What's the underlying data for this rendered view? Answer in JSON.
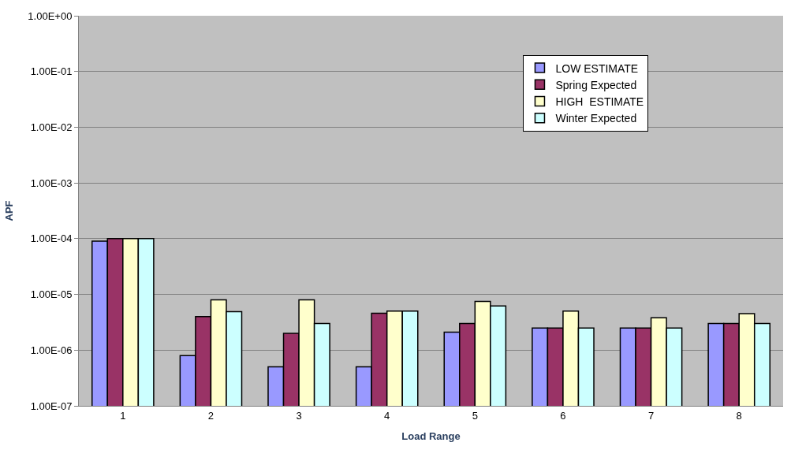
{
  "chart_data": {
    "type": "bar",
    "xlabel": "Load Range",
    "ylabel": "APF",
    "log": "y",
    "grid": "y",
    "legend": "top right",
    "categories": [
      "1",
      "2",
      "3",
      "4",
      "5",
      "6",
      "7",
      "8"
    ],
    "ylim": [
      1e-07,
      1
    ],
    "yticks": [
      {
        "value": 1e-07,
        "label": "1.00E-07"
      },
      {
        "value": 1e-06,
        "label": "1.00E-06"
      },
      {
        "value": 1e-05,
        "label": "1.00E-05"
      },
      {
        "value": 0.0001,
        "label": "1.00E-04"
      },
      {
        "value": 0.001,
        "label": "1.00E-03"
      },
      {
        "value": 0.01,
        "label": "1.00E-02"
      },
      {
        "value": 0.1,
        "label": "1.00E-01"
      },
      {
        "value": 1,
        "label": "1.00E+00"
      }
    ],
    "series": [
      {
        "name": "LOW ESTIMATE",
        "color": "#9999ff",
        "values": [
          9e-05,
          8e-07,
          5e-07,
          5e-07,
          2.1e-06,
          2.5e-06,
          2.5e-06,
          3e-06
        ]
      },
      {
        "name": "Spring Expected",
        "color": "#993366",
        "values": [
          0.0001,
          4e-06,
          2e-06,
          4.6e-06,
          3e-06,
          2.5e-06,
          2.5e-06,
          3e-06
        ]
      },
      {
        "name": "HIGH  ESTIMATE",
        "color": "#ffffcc",
        "values": [
          0.0001,
          8e-06,
          8e-06,
          5e-06,
          7.5e-06,
          5e-06,
          3.8e-06,
          4.5e-06
        ]
      },
      {
        "name": "Winter Expected",
        "color": "#ccffff",
        "values": [
          0.0001,
          4.9e-06,
          3e-06,
          5e-06,
          6.2e-06,
          2.5e-06,
          2.5e-06,
          3e-06
        ]
      }
    ]
  }
}
